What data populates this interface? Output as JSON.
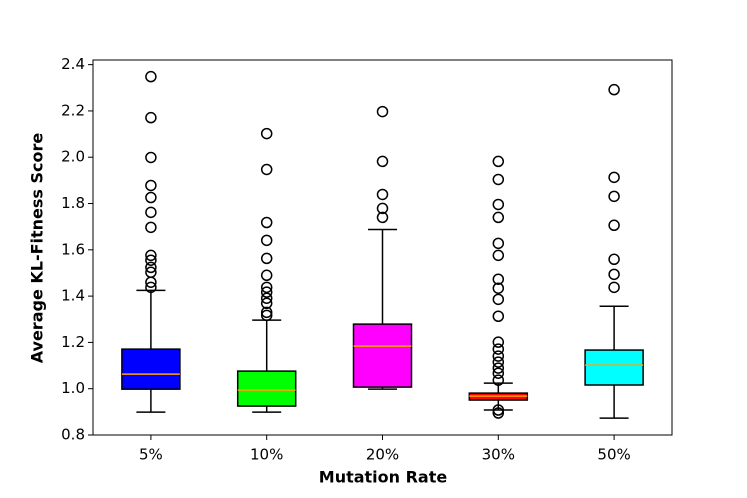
{
  "chart_data": {
    "type": "box",
    "x_label": "Mutation Rate",
    "y_label": "Average KL-Fitness Score",
    "categories": [
      "5%",
      "10%",
      "20%",
      "30%",
      "50%"
    ],
    "ylim": [
      0.8,
      2.42
    ],
    "yticks": [
      0.8,
      {
        "value": 1.0,
        "label": "1.0"
      },
      1.2,
      1.4,
      1.6,
      1.8,
      {
        "value": 2.0,
        "label": "2.0"
      },
      2.2,
      2.4
    ],
    "median_color": "#ffa500",
    "boxes": [
      {
        "color": "#0000ff",
        "whislo": 0.899,
        "q1": 0.998,
        "med": 1.063,
        "q3": 1.171,
        "whishi": 1.425,
        "fliers": [
          2.348,
          2.171,
          1.999,
          1.878,
          1.826,
          1.762,
          1.697,
          1.576,
          1.555,
          1.524,
          1.503,
          1.46,
          1.438
        ]
      },
      {
        "color": "#00ff00",
        "whislo": 0.899,
        "q1": 0.925,
        "med": 0.994,
        "q3": 1.076,
        "whishi": 1.296,
        "fliers": [
          2.102,
          1.947,
          1.718,
          1.641,
          1.563,
          1.49,
          1.438,
          1.417,
          1.391,
          1.369,
          1.33,
          1.317
        ]
      },
      {
        "color": "#ff00ff",
        "whislo": 0.998,
        "q1": 1.007,
        "med": 1.184,
        "q3": 1.279,
        "whishi": 1.688,
        "fliers": [
          2.197,
          1.982,
          1.839,
          1.779,
          1.74
        ]
      },
      {
        "color": "#ff0000",
        "whislo": 0.908,
        "q1": 0.951,
        "med": 0.968,
        "q3": 0.981,
        "whishi": 1.024,
        "fliers": [
          1.982,
          1.904,
          1.796,
          1.74,
          1.628,
          1.576,
          1.473,
          1.434,
          1.386,
          1.313,
          1.201,
          1.171,
          1.141,
          1.115,
          1.089,
          1.067,
          1.037,
          0.908,
          0.895
        ]
      },
      {
        "color": "#00ffff",
        "whislo": 0.873,
        "q1": 1.016,
        "med": 1.102,
        "q3": 1.167,
        "whishi": 1.356,
        "fliers": [
          2.292,
          1.913,
          1.831,
          1.706,
          1.559,
          1.494,
          1.438
        ]
      }
    ]
  }
}
